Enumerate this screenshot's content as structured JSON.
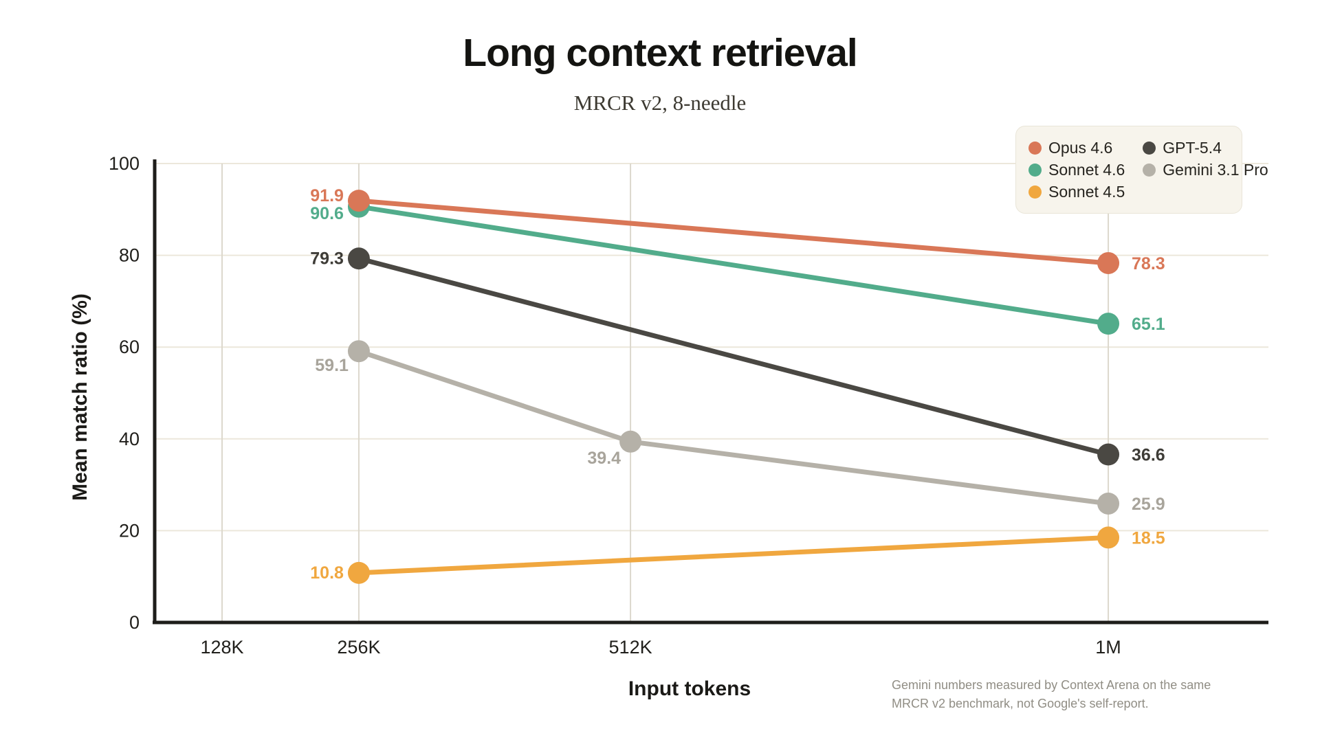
{
  "chart_data": {
    "type": "line",
    "title": "Long context retrieval",
    "subtitle": "MRCR v2, 8-needle",
    "xlabel": "Input tokens",
    "ylabel": "Mean match ratio (%)",
    "footnote": "Gemini numbers measured by Context Arena on the same MRCR v2 benchmark, not Google's self-report.",
    "categories": [
      "128K",
      "256K",
      "512K",
      "1M"
    ],
    "ylim": [
      0,
      100
    ],
    "yticks": [
      0,
      20,
      40,
      60,
      80,
      100
    ],
    "grid": true,
    "legend_position": "top-right",
    "legend_columns": [
      [
        "Opus 4.6",
        "Sonnet 4.6",
        "Sonnet 4.5"
      ],
      [
        "GPT-5.4",
        "Gemini 3.1 Pro"
      ]
    ],
    "series": [
      {
        "name": "Opus 4.6",
        "color": "#D97757",
        "label_color": "#D97757",
        "points": [
          {
            "x": "256K",
            "y": 91.9,
            "label": "91.9",
            "anchor": "end",
            "dx": -22,
            "dy": -7
          },
          {
            "x": "1M",
            "y": 78.3,
            "label": "78.3",
            "anchor": "start",
            "dx": 34,
            "dy": 1
          }
        ]
      },
      {
        "name": "Sonnet 4.6",
        "color": "#52AC8B",
        "label_color": "#52AC8B",
        "points": [
          {
            "x": "256K",
            "y": 90.6,
            "label": "90.6",
            "anchor": "end",
            "dx": -22,
            "dy": 10
          },
          {
            "x": "1M",
            "y": 65.1,
            "label": "65.1",
            "anchor": "start",
            "dx": 34,
            "dy": 1
          }
        ]
      },
      {
        "name": "Sonnet 4.5",
        "color": "#F0A73F",
        "label_color": "#F0A73F",
        "points": [
          {
            "x": "256K",
            "y": 10.8,
            "label": "10.8",
            "anchor": "end",
            "dx": -22,
            "dy": 0
          },
          {
            "x": "1M",
            "y": 18.5,
            "label": "18.5",
            "anchor": "start",
            "dx": 34,
            "dy": 1
          }
        ]
      },
      {
        "name": "GPT-5.4",
        "color": "#4A4843",
        "label_color": "#3e3c37",
        "points": [
          {
            "x": "256K",
            "y": 79.3,
            "label": "79.3",
            "anchor": "end",
            "dx": -22,
            "dy": 0
          },
          {
            "x": "1M",
            "y": 36.6,
            "label": "36.6",
            "anchor": "start",
            "dx": 34,
            "dy": 1
          }
        ]
      },
      {
        "name": "Gemini 3.1 Pro",
        "color": "#B5B1A8",
        "label_color": "#A8A49B",
        "points": [
          {
            "x": "256K",
            "y": 59.1,
            "label": "59.1",
            "anchor": "end",
            "dx": -15,
            "dy": 21
          },
          {
            "x": "512K",
            "y": 39.4,
            "label": "39.4",
            "anchor": "end",
            "dx": -14,
            "dy": 24
          },
          {
            "x": "1M",
            "y": 25.9,
            "label": "25.9",
            "anchor": "start",
            "dx": 34,
            "dy": 1
          }
        ]
      }
    ]
  },
  "colors": {
    "axis": "#1E1D1A",
    "grid_horizontal": "#ECE7DB",
    "grid_vertical": "#DCD8CD",
    "legend_background": "#F7F4EC",
    "legend_border": "#E9E5D8",
    "tick_text": "#201F1B",
    "footnote_text": "#908D84"
  }
}
